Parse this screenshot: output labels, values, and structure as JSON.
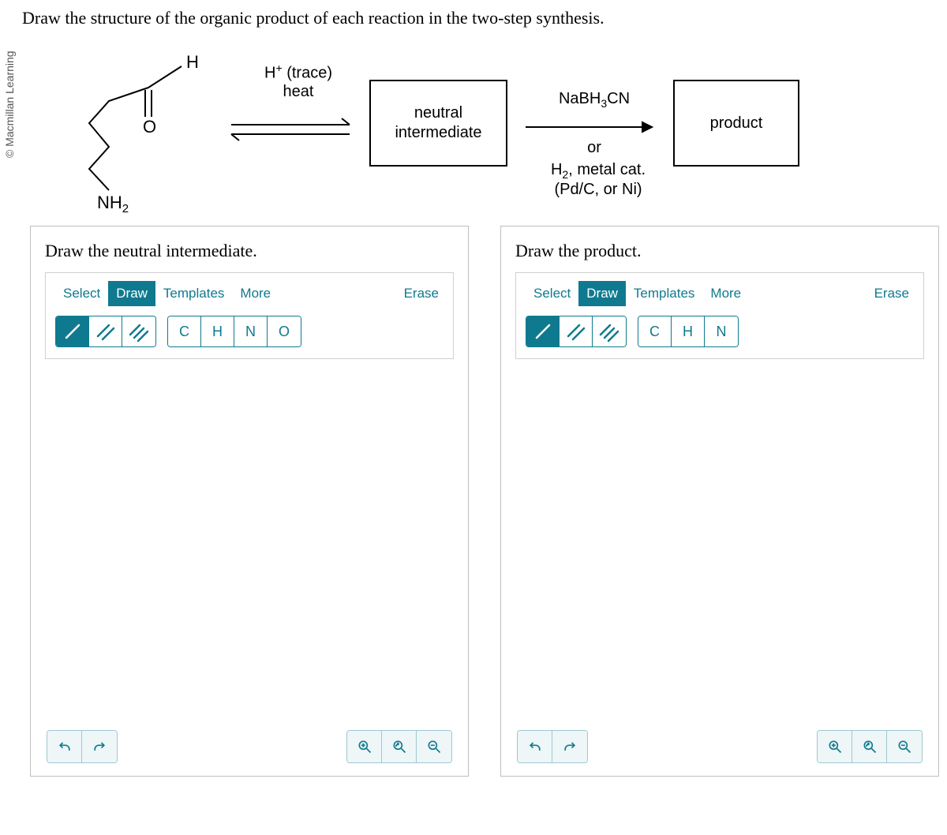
{
  "copyright": "© Macmillan Learning",
  "question": "Draw the structure of the organic product of each reaction in the two-step synthesis.",
  "scheme": {
    "step1_top": "H⁺ (trace)",
    "step1_bottom": "heat",
    "box_intermediate": "neutral\nintermediate",
    "step2_top": "NaBH₃CN",
    "step2_mid": "or",
    "step2_bot1": "H₂, metal cat.",
    "step2_bot2": "(Pd/C, or Ni)",
    "box_product": "product",
    "start_H": "H",
    "start_O": "O",
    "start_NH2": "NH₂",
    "colors": {
      "line": "#000000",
      "accent": "#0f7a8f"
    }
  },
  "panels": [
    {
      "title": "Draw the neutral intermediate.",
      "tabs": [
        "Select",
        "Draw",
        "Templates",
        "More"
      ],
      "active_tab": 1,
      "erase": "Erase",
      "bond_tools": [
        "/",
        "//",
        "///"
      ],
      "active_bond": 0,
      "atom_tools": [
        "C",
        "H",
        "N",
        "O"
      ]
    },
    {
      "title": "Draw the product.",
      "tabs": [
        "Select",
        "Draw",
        "Templates",
        "More"
      ],
      "active_tab": 1,
      "erase": "Erase",
      "bond_tools": [
        "/",
        "//",
        "///"
      ],
      "active_bond": 0,
      "atom_tools": [
        "C",
        "H",
        "N"
      ]
    }
  ]
}
